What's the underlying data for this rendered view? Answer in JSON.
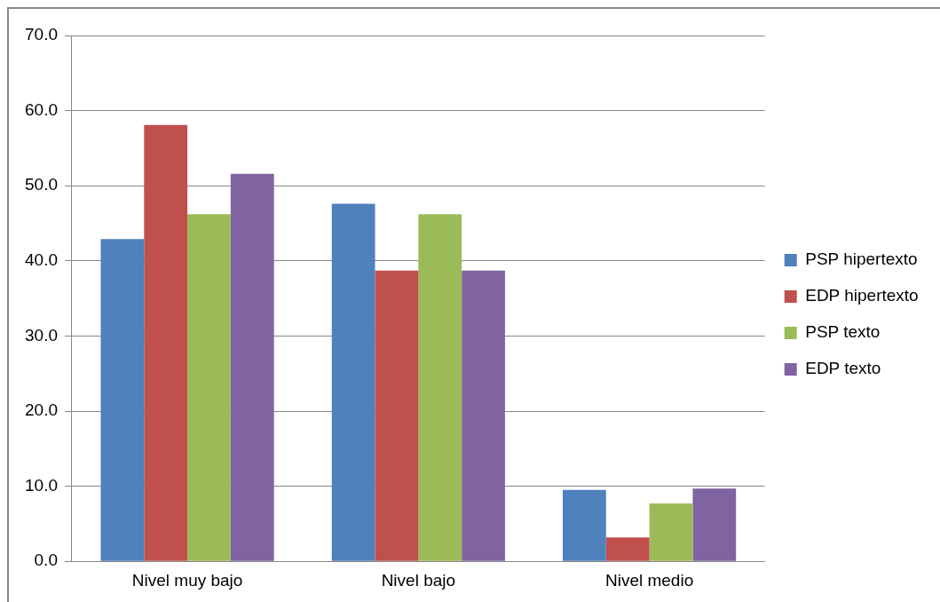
{
  "chart_data": {
    "type": "bar",
    "categories": [
      "Nivel muy bajo",
      "Nivel bajo",
      "Nivel medio"
    ],
    "series": [
      {
        "name": "PSP hipertexto",
        "color": "#4f81bd",
        "values": [
          42.9,
          47.6,
          9.5
        ]
      },
      {
        "name": "EDP hipertexto",
        "color": "#c0504d",
        "values": [
          58.1,
          38.7,
          3.2
        ]
      },
      {
        "name": "PSP texto",
        "color": "#9bbb59",
        "values": [
          46.2,
          46.2,
          7.7
        ]
      },
      {
        "name": "EDP texto",
        "color": "#8064a2",
        "values": [
          51.6,
          38.7,
          9.7
        ]
      }
    ],
    "ylim": [
      0,
      70
    ],
    "yticks": [
      {
        "value": 0,
        "label": "0.0"
      },
      {
        "value": 10,
        "label": "10.0"
      },
      {
        "value": 20,
        "label": "20.0"
      },
      {
        "value": 30,
        "label": "30.0"
      },
      {
        "value": 40,
        "label": "40.0"
      },
      {
        "value": 50,
        "label": "50.0"
      },
      {
        "value": 60,
        "label": "60.0"
      },
      {
        "value": 70,
        "label": "70.0"
      }
    ],
    "grid": "y",
    "legend": "right"
  }
}
